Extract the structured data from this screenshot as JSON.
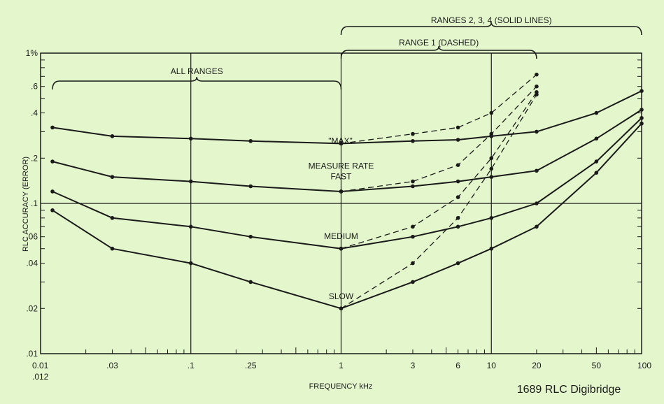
{
  "chart_data": {
    "type": "line",
    "x_scale": "log",
    "y_scale": "log",
    "xlabel": "FREQUENCY  kHz",
    "ylabel": "RLC ACCURACY (ERROR)",
    "xlim": [
      0.01,
      100
    ],
    "ylim": [
      0.01,
      1
    ],
    "x_ticks": [
      {
        "value": 0.01,
        "label": "0.01"
      },
      {
        "value": 0.03,
        "label": ".03"
      },
      {
        "value": 0.1,
        "label": ".1"
      },
      {
        "value": 0.25,
        "label": ".25"
      },
      {
        "value": 1,
        "label": "1"
      },
      {
        "value": 3,
        "label": "3"
      },
      {
        "value": 6,
        "label": "6"
      },
      {
        "value": 10,
        "label": "10"
      },
      {
        "value": 20,
        "label": "20"
      },
      {
        "value": 50,
        "label": "50"
      },
      {
        "value": 100,
        "label": "100"
      }
    ],
    "x_extra_label": ".012",
    "y_ticks": [
      {
        "value": 0.01,
        "label": ".01"
      },
      {
        "value": 0.02,
        "label": ".02"
      },
      {
        "value": 0.04,
        "label": ".04"
      },
      {
        "value": 0.06,
        "label": ".06"
      },
      {
        "value": 0.1,
        "label": ".1"
      },
      {
        "value": 0.2,
        "label": ".2"
      },
      {
        "value": 0.4,
        "label": ".4"
      },
      {
        "value": 0.6,
        "label": ".6"
      },
      {
        "value": 1,
        "label": "1%"
      }
    ],
    "grid": "major decades only",
    "series": [
      {
        "style": "solid",
        "points": [
          [
            0.012,
            0.32
          ],
          [
            0.03,
            0.28
          ],
          [
            0.1,
            0.27
          ],
          [
            0.25,
            0.26
          ],
          [
            1,
            0.25
          ],
          [
            3,
            0.26
          ],
          [
            6,
            0.265
          ],
          [
            10,
            0.28
          ],
          [
            20,
            0.3
          ],
          [
            50,
            0.4
          ],
          [
            100,
            0.56
          ]
        ]
      },
      {
        "style": "solid",
        "points": [
          [
            0.012,
            0.19
          ],
          [
            0.03,
            0.15
          ],
          [
            0.1,
            0.14
          ],
          [
            0.25,
            0.13
          ],
          [
            1,
            0.12
          ],
          [
            3,
            0.13
          ],
          [
            6,
            0.14
          ],
          [
            10,
            0.15
          ],
          [
            20,
            0.165
          ],
          [
            50,
            0.27
          ],
          [
            100,
            0.42
          ]
        ]
      },
      {
        "style": "solid",
        "points": [
          [
            0.012,
            0.12
          ],
          [
            0.03,
            0.08
          ],
          [
            0.1,
            0.07
          ],
          [
            0.25,
            0.06
          ],
          [
            1,
            0.05
          ],
          [
            3,
            0.06
          ],
          [
            6,
            0.07
          ],
          [
            10,
            0.08
          ],
          [
            20,
            0.1
          ],
          [
            50,
            0.19
          ],
          [
            100,
            0.37
          ]
        ]
      },
      {
        "style": "solid",
        "points": [
          [
            0.012,
            0.09
          ],
          [
            0.03,
            0.05
          ],
          [
            0.1,
            0.04
          ],
          [
            0.25,
            0.03
          ],
          [
            1,
            0.02
          ],
          [
            3,
            0.03
          ],
          [
            6,
            0.04
          ],
          [
            10,
            0.05
          ],
          [
            20,
            0.07
          ],
          [
            50,
            0.16
          ],
          [
            100,
            0.34
          ]
        ]
      },
      {
        "style": "dashed",
        "points": [
          [
            1,
            0.25
          ],
          [
            3,
            0.29
          ],
          [
            6,
            0.32
          ],
          [
            10,
            0.4
          ],
          [
            20,
            0.72
          ]
        ]
      },
      {
        "style": "dashed",
        "points": [
          [
            1,
            0.12
          ],
          [
            3,
            0.14
          ],
          [
            6,
            0.18
          ],
          [
            10,
            0.29
          ],
          [
            20,
            0.6
          ]
        ]
      },
      {
        "style": "dashed",
        "points": [
          [
            1,
            0.05
          ],
          [
            3,
            0.07
          ],
          [
            6,
            0.11
          ],
          [
            10,
            0.2
          ],
          [
            20,
            0.55
          ]
        ]
      },
      {
        "style": "dashed",
        "points": [
          [
            1,
            0.02
          ],
          [
            3,
            0.04
          ],
          [
            6,
            0.08
          ],
          [
            10,
            0.17
          ],
          [
            20,
            0.53
          ]
        ]
      }
    ],
    "annotations": [
      {
        "text": "\"MAX\"",
        "x": 1,
        "y": 0.25
      },
      {
        "text": "MEASURE RATE",
        "x": 1,
        "y": 0.17
      },
      {
        "text": "FAST",
        "x": 1,
        "y": 0.145
      },
      {
        "text": "MEDIUM",
        "x": 1,
        "y": 0.058
      },
      {
        "text": "SLOW",
        "x": 1,
        "y": 0.023
      }
    ],
    "range_brackets": [
      {
        "text": "RANGES 2, 3, 4 (SOLID LINES)",
        "from": 1,
        "to": 100,
        "level": 1
      },
      {
        "text": "RANGE 1 (DASHED)",
        "from": 1,
        "to": 20,
        "level": 2
      },
      {
        "text": "ALL RANGES",
        "from": 0.012,
        "to": 1,
        "level": 3
      }
    ]
  },
  "caption": "1689 RLC Digibridge",
  "colors": {
    "background": "#e4f7cc",
    "ink": "#1a1a1a"
  }
}
